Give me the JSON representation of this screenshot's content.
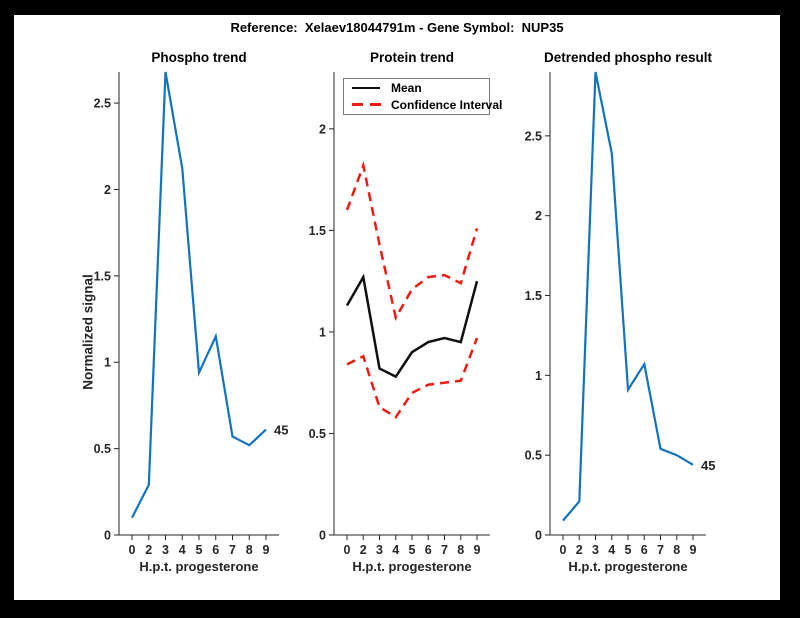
{
  "figure": {
    "title": "Reference:  Xelaev18044791m - Gene Symbol:  NUP35"
  },
  "palette": {
    "line_blue": "#1273BE",
    "ci_red": "#ED1C14",
    "mean_black": "#111111",
    "axis_color": "#262626",
    "figure_bg": "#FFFFFF",
    "page_bg": "#000000"
  },
  "chart_data": [
    {
      "type": "line",
      "title": "Phospho trend",
      "xlabel": "H.p.t. progesterone",
      "ylabel": "Normalized signal",
      "x_ticklabels": [
        "0",
        "2",
        "3",
        "4",
        "5",
        "6",
        "7",
        "8",
        "9"
      ],
      "x_spacing": "uniform",
      "yticks": [
        0,
        0.5,
        1,
        1.5,
        2,
        2.5
      ],
      "ylim": [
        0,
        2.68
      ],
      "grid": false,
      "series": [
        {
          "name": "phospho-signal",
          "color": "line_blue",
          "style": "solid",
          "values": [
            0.1,
            0.29,
            2.68,
            2.12,
            0.94,
            1.15,
            0.57,
            0.52,
            0.61
          ]
        }
      ],
      "end_label": "45"
    },
    {
      "type": "line",
      "title": "Protein trend",
      "xlabel": "H.p.t. progesterone",
      "ylabel": "",
      "x_ticklabels": [
        "0",
        "2",
        "3",
        "4",
        "5",
        "6",
        "7",
        "8",
        "9"
      ],
      "x_spacing": "uniform",
      "yticks": [
        0,
        0.5,
        1,
        1.5,
        2
      ],
      "ylim": [
        0,
        2.28
      ],
      "grid": false,
      "legend": {
        "position": "top-left",
        "entries": [
          {
            "label": "Mean",
            "style": "solid",
            "color": "mean_black"
          },
          {
            "label": "Confidence Interval",
            "style": "dashed",
            "color": "ci_red"
          }
        ]
      },
      "series": [
        {
          "name": "mean",
          "color": "mean_black",
          "style": "solid",
          "values": [
            1.13,
            1.27,
            0.82,
            0.78,
            0.9,
            0.95,
            0.97,
            0.95,
            1.25
          ]
        },
        {
          "name": "ci-upper",
          "color": "ci_red",
          "style": "dashed",
          "values": [
            1.6,
            1.82,
            1.43,
            1.07,
            1.21,
            1.27,
            1.28,
            1.24,
            1.51
          ]
        },
        {
          "name": "ci-lower",
          "color": "ci_red",
          "style": "dashed",
          "values": [
            0.84,
            0.88,
            0.63,
            0.58,
            0.7,
            0.74,
            0.75,
            0.76,
            0.97
          ]
        }
      ],
      "end_label": ""
    },
    {
      "type": "line",
      "title": "Detrended phospho result",
      "xlabel": "H.p.t. progesterone",
      "ylabel": "",
      "x_ticklabels": [
        "0",
        "2",
        "3",
        "4",
        "5",
        "6",
        "7",
        "8",
        "9"
      ],
      "x_spacing": "uniform",
      "yticks": [
        0,
        0.5,
        1,
        1.5,
        2,
        2.5
      ],
      "ylim": [
        0,
        2.9
      ],
      "grid": false,
      "series": [
        {
          "name": "detrended-phospho",
          "color": "line_blue",
          "style": "solid",
          "values": [
            0.09,
            0.21,
            2.9,
            2.39,
            0.91,
            1.07,
            0.54,
            0.5,
            0.44
          ]
        }
      ],
      "end_label": "45"
    }
  ]
}
